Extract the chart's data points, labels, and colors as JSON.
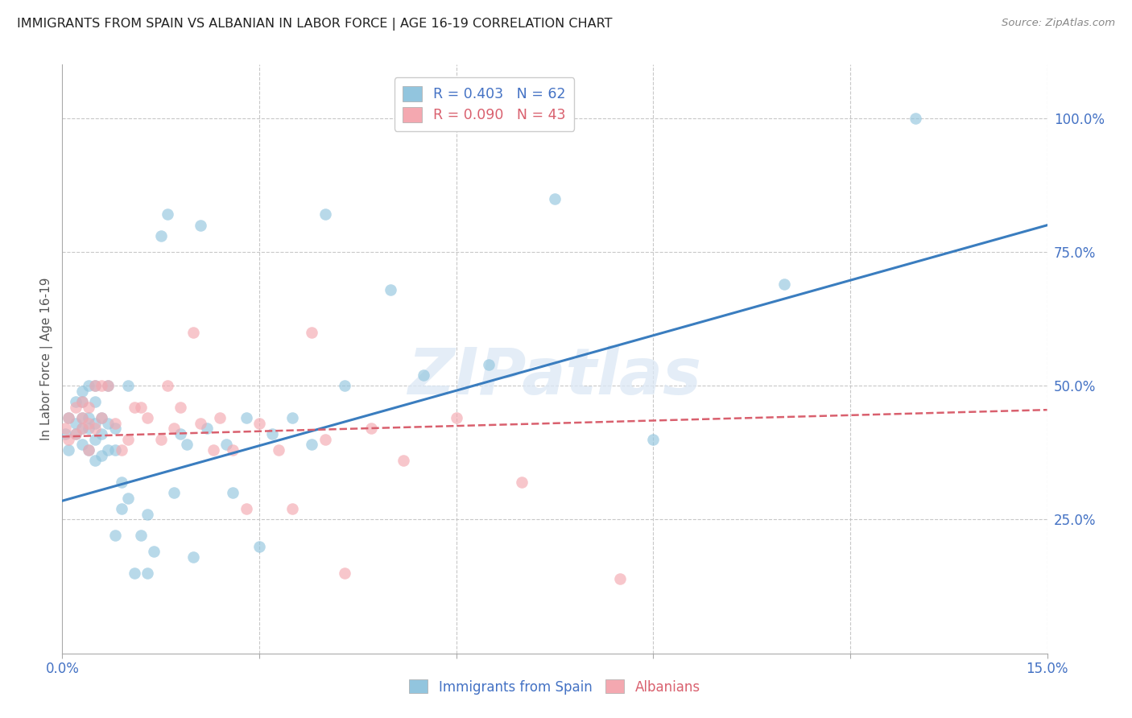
{
  "title": "IMMIGRANTS FROM SPAIN VS ALBANIAN IN LABOR FORCE | AGE 16-19 CORRELATION CHART",
  "source": "Source: ZipAtlas.com",
  "ylabel": "In Labor Force | Age 16-19",
  "x_min": 0.0,
  "x_max": 0.15,
  "y_min": 0.0,
  "y_max": 1.1,
  "x_ticks": [
    0.0,
    0.03,
    0.06,
    0.09,
    0.12,
    0.15
  ],
  "x_tick_labels": [
    "0.0%",
    "",
    "",
    "",
    "",
    "15.0%"
  ],
  "y_tick_labels_right": [
    "25.0%",
    "50.0%",
    "75.0%",
    "100.0%"
  ],
  "y_tick_vals_right": [
    0.25,
    0.5,
    0.75,
    1.0
  ],
  "legend_blue_r": "R = 0.403",
  "legend_blue_n": "N = 62",
  "legend_pink_r": "R = 0.090",
  "legend_pink_n": "N = 43",
  "blue_color": "#92c5de",
  "pink_color": "#f4a8b0",
  "blue_line_color": "#3a7dbf",
  "pink_line_color": "#d9606e",
  "grid_color": "#c8c8c8",
  "title_color": "#222222",
  "axis_label_color": "#4472c4",
  "watermark": "ZIPatlas",
  "blue_scatter_x": [
    0.0005,
    0.001,
    0.001,
    0.002,
    0.002,
    0.002,
    0.003,
    0.003,
    0.003,
    0.003,
    0.003,
    0.004,
    0.004,
    0.004,
    0.004,
    0.005,
    0.005,
    0.005,
    0.005,
    0.005,
    0.006,
    0.006,
    0.006,
    0.007,
    0.007,
    0.007,
    0.008,
    0.008,
    0.008,
    0.009,
    0.009,
    0.01,
    0.01,
    0.011,
    0.012,
    0.013,
    0.013,
    0.014,
    0.015,
    0.016,
    0.017,
    0.018,
    0.019,
    0.02,
    0.021,
    0.022,
    0.025,
    0.026,
    0.028,
    0.03,
    0.032,
    0.035,
    0.038,
    0.04,
    0.043,
    0.05,
    0.055,
    0.065,
    0.075,
    0.09,
    0.11,
    0.13
  ],
  "blue_scatter_y": [
    0.41,
    0.38,
    0.44,
    0.41,
    0.43,
    0.47,
    0.39,
    0.42,
    0.44,
    0.47,
    0.49,
    0.38,
    0.42,
    0.44,
    0.5,
    0.36,
    0.4,
    0.43,
    0.47,
    0.5,
    0.37,
    0.41,
    0.44,
    0.38,
    0.43,
    0.5,
    0.22,
    0.38,
    0.42,
    0.27,
    0.32,
    0.29,
    0.5,
    0.15,
    0.22,
    0.15,
    0.26,
    0.19,
    0.78,
    0.82,
    0.3,
    0.41,
    0.39,
    0.18,
    0.8,
    0.42,
    0.39,
    0.3,
    0.44,
    0.2,
    0.41,
    0.44,
    0.39,
    0.82,
    0.5,
    0.68,
    0.52,
    0.54,
    0.85,
    0.4,
    0.69,
    1.0
  ],
  "pink_scatter_x": [
    0.0005,
    0.001,
    0.001,
    0.002,
    0.002,
    0.003,
    0.003,
    0.003,
    0.004,
    0.004,
    0.004,
    0.005,
    0.005,
    0.006,
    0.006,
    0.007,
    0.008,
    0.009,
    0.01,
    0.011,
    0.012,
    0.013,
    0.015,
    0.016,
    0.017,
    0.018,
    0.02,
    0.021,
    0.023,
    0.024,
    0.026,
    0.028,
    0.03,
    0.033,
    0.035,
    0.038,
    0.04,
    0.043,
    0.047,
    0.052,
    0.06,
    0.07,
    0.085
  ],
  "pink_scatter_y": [
    0.42,
    0.4,
    0.44,
    0.41,
    0.46,
    0.42,
    0.44,
    0.47,
    0.38,
    0.43,
    0.46,
    0.42,
    0.5,
    0.44,
    0.5,
    0.5,
    0.43,
    0.38,
    0.4,
    0.46,
    0.46,
    0.44,
    0.4,
    0.5,
    0.42,
    0.46,
    0.6,
    0.43,
    0.38,
    0.44,
    0.38,
    0.27,
    0.43,
    0.38,
    0.27,
    0.6,
    0.4,
    0.15,
    0.42,
    0.36,
    0.44,
    0.32,
    0.14
  ],
  "blue_line_x": [
    0.0,
    0.15
  ],
  "blue_line_y": [
    0.285,
    0.8
  ],
  "pink_line_x": [
    0.0,
    0.15
  ],
  "pink_line_y": [
    0.405,
    0.455
  ]
}
